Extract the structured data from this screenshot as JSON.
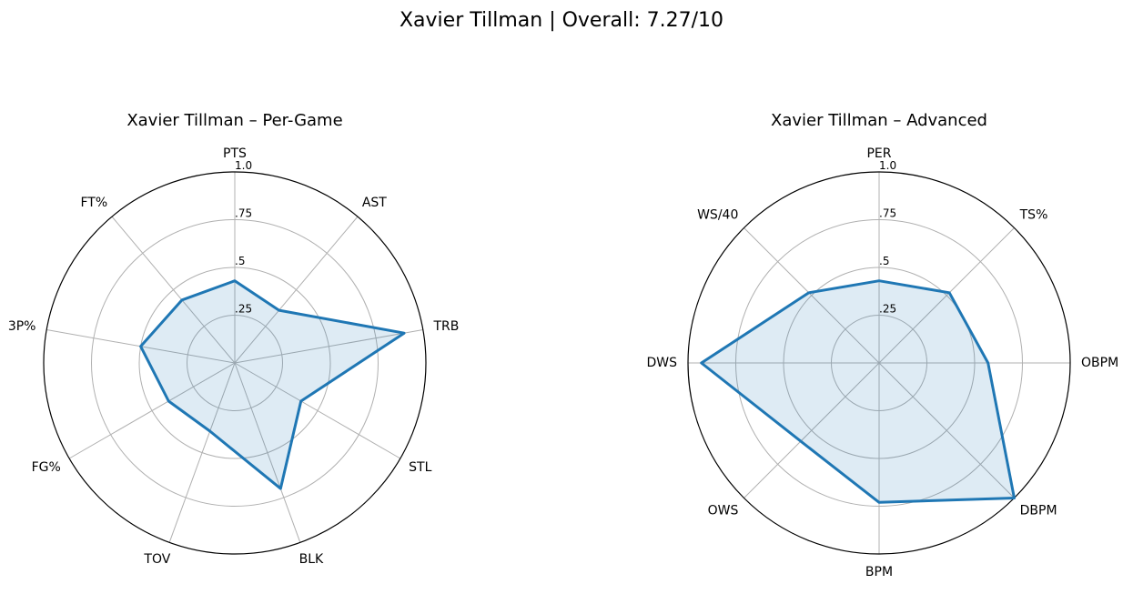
{
  "figure": {
    "title": "Xavier Tillman | Overall: 7.27/10"
  },
  "chart_data": [
    {
      "type": "radar",
      "title": "Xavier Tillman – Per-Game",
      "categories": [
        "PTS",
        "AST",
        "TRB",
        "STL",
        "BLK",
        "TOV",
        "FG%",
        "3P%",
        "FT%"
      ],
      "values": [
        0.43,
        0.36,
        0.9,
        0.4,
        0.7,
        0.38,
        0.4,
        0.5,
        0.43
      ],
      "rlim": [
        0,
        1
      ],
      "rticks": [
        ".25",
        ".5",
        ".75",
        "1.0"
      ],
      "grid": true,
      "color": "#1f77b4"
    },
    {
      "type": "radar",
      "title": "Xavier Tillman – Advanced",
      "categories": [
        "PER",
        "TS%",
        "OBPM",
        "DBPM",
        "BPM",
        "OWS",
        "DWS",
        "WS/40"
      ],
      "values": [
        0.43,
        0.52,
        0.57,
        1.0,
        0.73,
        0.58,
        0.93,
        0.52
      ],
      "rlim": [
        0,
        1
      ],
      "rticks": [
        ".25",
        ".5",
        ".75",
        "1.0"
      ],
      "grid": true,
      "color": "#1f77b4"
    }
  ]
}
